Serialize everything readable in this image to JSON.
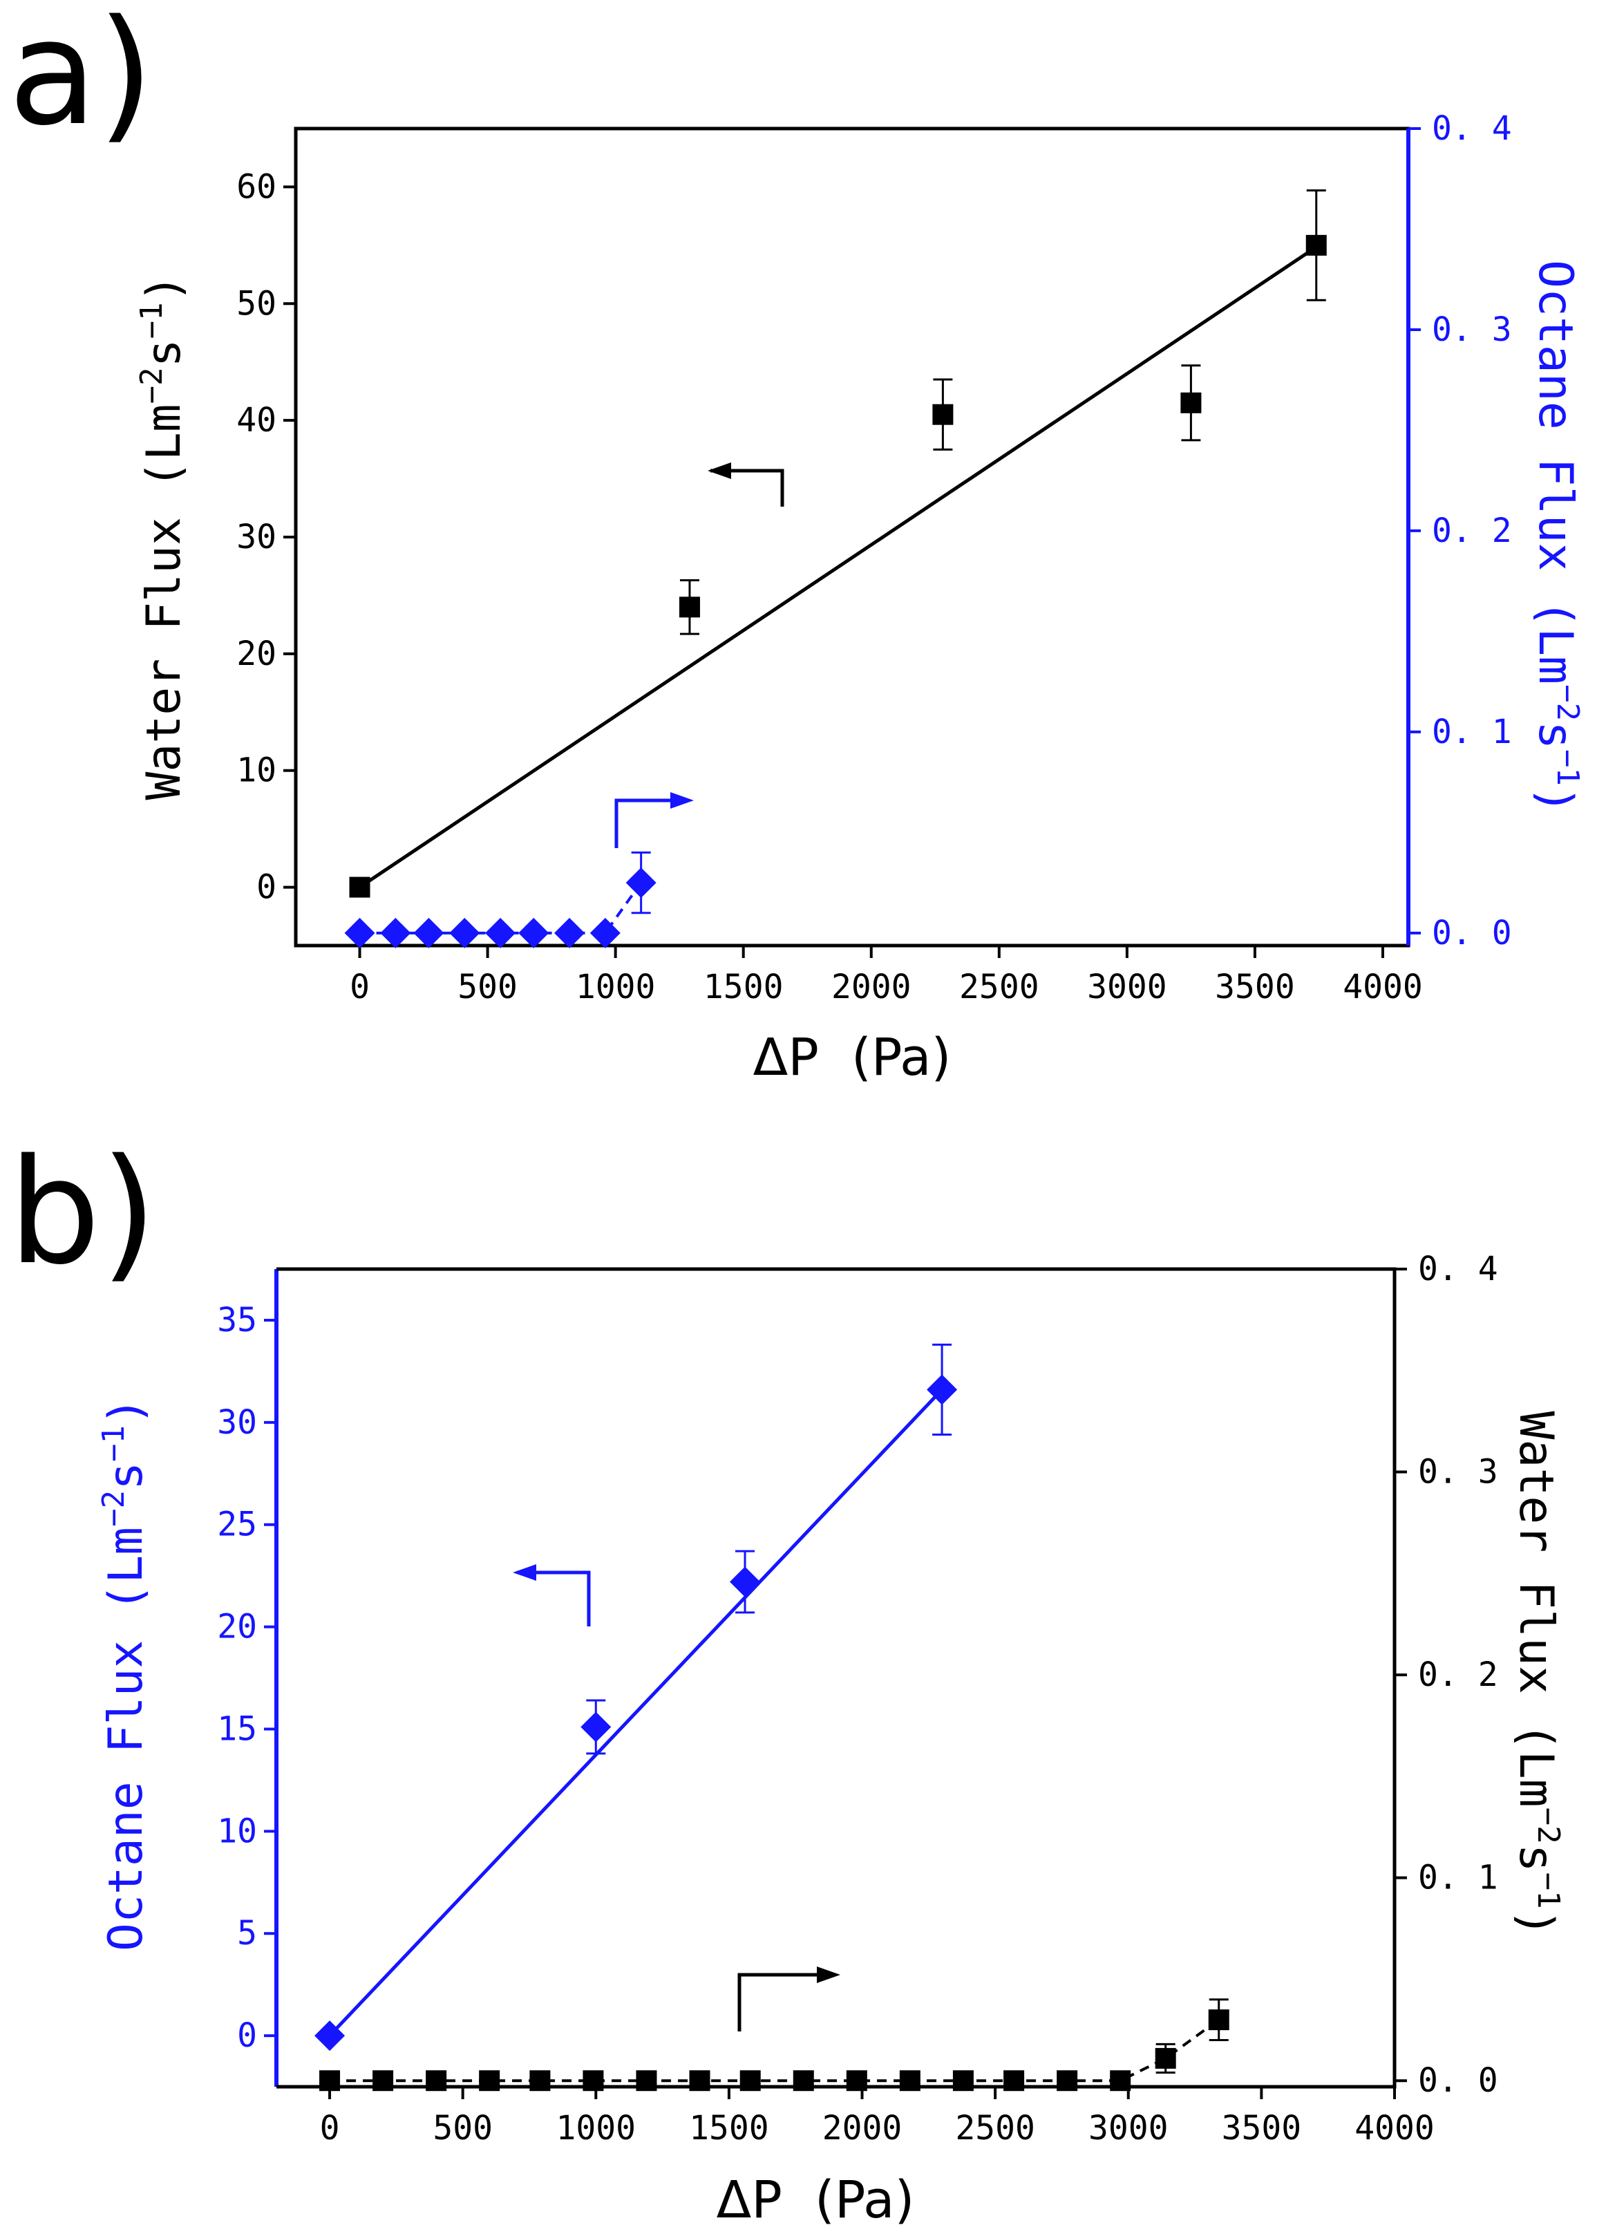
{
  "chart_data": [
    {
      "panel": "a)",
      "type": "scatter",
      "xlabel": "ΔP  (Pa)",
      "xlim": [
        -250,
        4100
      ],
      "xticks": [
        0,
        500,
        1000,
        1500,
        2000,
        2500,
        3000,
        3500,
        4000
      ],
      "ylabel_left": "Water Flux (Lm⁻²s⁻¹)",
      "ylim_left": [
        -5,
        65
      ],
      "yticks_left": [
        0,
        10,
        20,
        30,
        40,
        50,
        60
      ],
      "ylabel_right": "Octane Flux (Lm⁻²s⁻¹)",
      "ylim_right": [
        -0.00625,
        0.4
      ],
      "yticks_right": [
        0.0,
        0.1,
        0.2,
        0.3,
        0.4
      ],
      "series": [
        {
          "name": "Water Flux",
          "axis": "left",
          "color": "#000000",
          "marker": "square",
          "line": "fit",
          "fit": {
            "x": [
              0,
              3750
            ],
            "y": [
              0,
              55
            ]
          },
          "x": [
            0,
            1290,
            2280,
            3250,
            3740
          ],
          "y": [
            0,
            24,
            40.5,
            41.5,
            55
          ],
          "err": [
            0,
            2.3,
            3,
            3.2,
            4.7
          ]
        },
        {
          "name": "Octane Flux",
          "axis": "right",
          "color": "#1515ff",
          "marker": "diamond",
          "line": "dashed",
          "x": [
            0,
            140,
            270,
            410,
            550,
            680,
            820,
            960,
            1100
          ],
          "y": [
            0,
            0,
            0,
            0,
            0,
            0,
            0,
            0,
            0.025
          ],
          "err": [
            0,
            0,
            0,
            0,
            0,
            0,
            0,
            0,
            0.015
          ]
        }
      ],
      "annotations": [
        {
          "type": "arrow",
          "points_to": "left axis",
          "color": "#000000"
        },
        {
          "type": "arrow",
          "points_to": "right axis",
          "color": "#1515ff"
        }
      ]
    },
    {
      "panel": "b)",
      "type": "scatter",
      "xlabel": "ΔP  (Pa)",
      "xlim": [
        -200,
        4000
      ],
      "xticks": [
        0,
        500,
        1000,
        1500,
        2000,
        2500,
        3000,
        3500,
        4000
      ],
      "ylabel_left": "Octane Flux (Lm⁻²s⁻¹)",
      "ylim_left": [
        -2.5,
        37.5
      ],
      "yticks_left": [
        0,
        5,
        10,
        15,
        20,
        25,
        30,
        35
      ],
      "ylabel_right": "Water Flux (Lm⁻²s⁻¹)",
      "ylim_right": [
        -0.003,
        0.4
      ],
      "yticks_right": [
        0.0,
        0.1,
        0.2,
        0.3,
        0.4
      ],
      "series": [
        {
          "name": "Octane Flux",
          "axis": "left",
          "color": "#1515ff",
          "marker": "diamond",
          "line": "fit",
          "fit": {
            "x": [
              0,
              2300
            ],
            "y": [
              0,
              31.6
            ]
          },
          "x": [
            0,
            1000,
            1560,
            2300
          ],
          "y": [
            0,
            15.1,
            22.2,
            31.6
          ],
          "err": [
            0,
            1.3,
            1.5,
            2.2
          ]
        },
        {
          "name": "Water Flux",
          "axis": "right",
          "color": "#000000",
          "marker": "square",
          "line": "dashed",
          "x": [
            0,
            200,
            400,
            600,
            790,
            990,
            1190,
            1390,
            1580,
            1780,
            1980,
            2180,
            2380,
            2570,
            2770,
            2970,
            3140,
            3340
          ],
          "y": [
            0,
            0,
            0,
            0,
            0,
            0,
            0,
            0,
            0,
            0,
            0,
            0,
            0,
            0,
            0,
            0,
            0.011,
            0.03
          ],
          "err": [
            0,
            0,
            0,
            0,
            0,
            0,
            0,
            0,
            0,
            0,
            0,
            0,
            0,
            0,
            0,
            0,
            0.007,
            0.01
          ]
        }
      ],
      "annotations": [
        {
          "type": "arrow",
          "points_to": "left axis",
          "color": "#1515ff"
        },
        {
          "type": "arrow",
          "points_to": "right axis",
          "color": "#000000"
        }
      ]
    }
  ]
}
